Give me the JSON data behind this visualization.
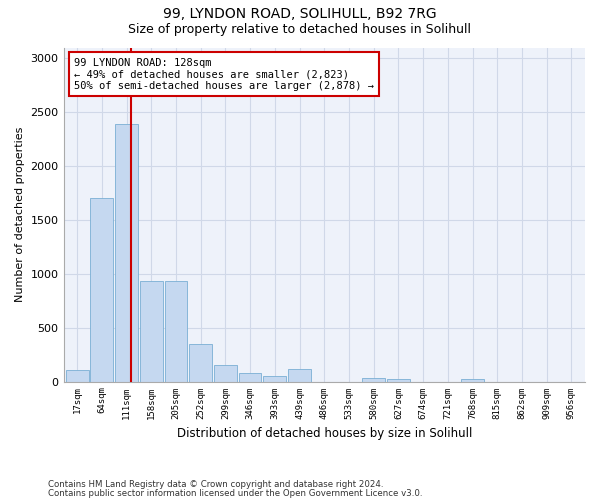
{
  "title_line1": "99, LYNDON ROAD, SOLIHULL, B92 7RG",
  "title_line2": "Size of property relative to detached houses in Solihull",
  "xlabel": "Distribution of detached houses by size in Solihull",
  "ylabel": "Number of detached properties",
  "bar_color": "#c5d8f0",
  "bar_edge_color": "#7aafd4",
  "grid_color": "#d0d8e8",
  "background_color": "#eef2fa",
  "bin_labels": [
    "17sqm",
    "64sqm",
    "111sqm",
    "158sqm",
    "205sqm",
    "252sqm",
    "299sqm",
    "346sqm",
    "393sqm",
    "439sqm",
    "486sqm",
    "533sqm",
    "580sqm",
    "627sqm",
    "674sqm",
    "721sqm",
    "768sqm",
    "815sqm",
    "862sqm",
    "909sqm",
    "956sqm"
  ],
  "bar_values": [
    110,
    1700,
    2390,
    930,
    930,
    345,
    150,
    80,
    55,
    115,
    0,
    0,
    35,
    20,
    0,
    0,
    20,
    0,
    0,
    0,
    0
  ],
  "ylim": [
    0,
    3100
  ],
  "yticks": [
    0,
    500,
    1000,
    1500,
    2000,
    2500,
    3000
  ],
  "property_line_x": 2.18,
  "annotation_text": "99 LYNDON ROAD: 128sqm\n← 49% of detached houses are smaller (2,823)\n50% of semi-detached houses are larger (2,878) →",
  "annotation_box_color": "#ffffff",
  "annotation_border_color": "#cc0000",
  "vline_color": "#cc0000",
  "footnote1": "Contains HM Land Registry data © Crown copyright and database right 2024.",
  "footnote2": "Contains public sector information licensed under the Open Government Licence v3.0."
}
